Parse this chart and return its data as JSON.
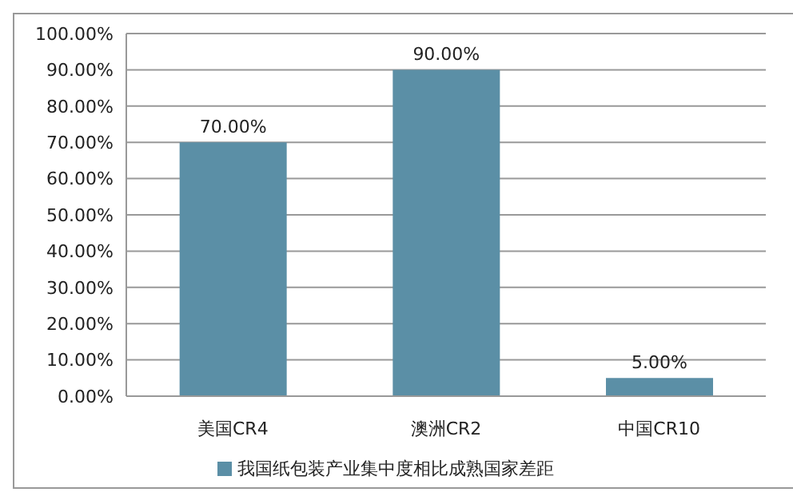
{
  "chart_data": {
    "type": "bar",
    "categories": [
      "美国CR4",
      "澳洲CR2",
      "中国CR10"
    ],
    "series": [
      {
        "name": "我国纸包装产业集中度相比成熟国家差距",
        "color": "#5b8fa6",
        "values": [
          70,
          90,
          5
        ],
        "value_labels": [
          "70.00%",
          "90.00%",
          "5.00%"
        ]
      }
    ],
    "ylim": [
      0,
      100
    ],
    "yticks": [
      {
        "value": 0,
        "label": "0.00%"
      },
      {
        "value": 10,
        "label": "10.00%"
      },
      {
        "value": 20,
        "label": "20.00%"
      },
      {
        "value": 30,
        "label": "30.00%"
      },
      {
        "value": 40,
        "label": "40.00%"
      },
      {
        "value": 50,
        "label": "50.00%"
      },
      {
        "value": 60,
        "label": "60.00%"
      },
      {
        "value": 70,
        "label": "70.00%"
      },
      {
        "value": 80,
        "label": "80.00%"
      },
      {
        "value": 90,
        "label": "90.00%"
      },
      {
        "value": 100,
        "label": "100.00%"
      }
    ],
    "grid": "y",
    "legend": "bottom"
  }
}
